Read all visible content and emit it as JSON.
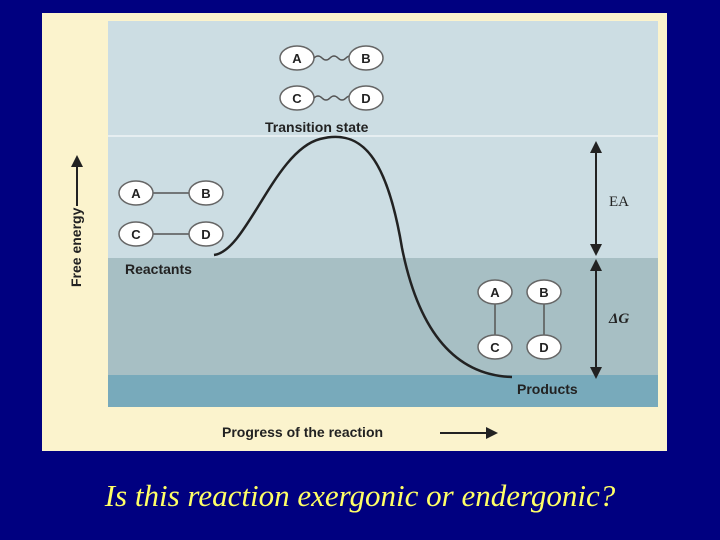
{
  "figure": {
    "y_axis_label": "Free energy",
    "x_axis_label": "Progress of the reaction",
    "transition_state_label": "Transition state",
    "reactants_label": "Reactants",
    "products_label": "Products",
    "activation_energy_label": "EA",
    "delta_g_label": "ΔG",
    "transition_molecules": {
      "row1": [
        "A",
        "B"
      ],
      "row2": [
        "C",
        "D"
      ]
    },
    "reactant_molecules": {
      "row1": [
        "A",
        "B"
      ],
      "row2": [
        "C",
        "D"
      ]
    },
    "product_molecules": {
      "row1": [
        "A",
        "B"
      ],
      "row2": [
        "C",
        "D"
      ]
    },
    "colors": {
      "background": "#fbf3cd",
      "band_top": "#ccdde3",
      "band_middle": "#a7bfc4",
      "band_bottom": "#78aabb",
      "curve": "#222222"
    }
  },
  "question": "Is this reaction exergonic or endergonic?"
}
